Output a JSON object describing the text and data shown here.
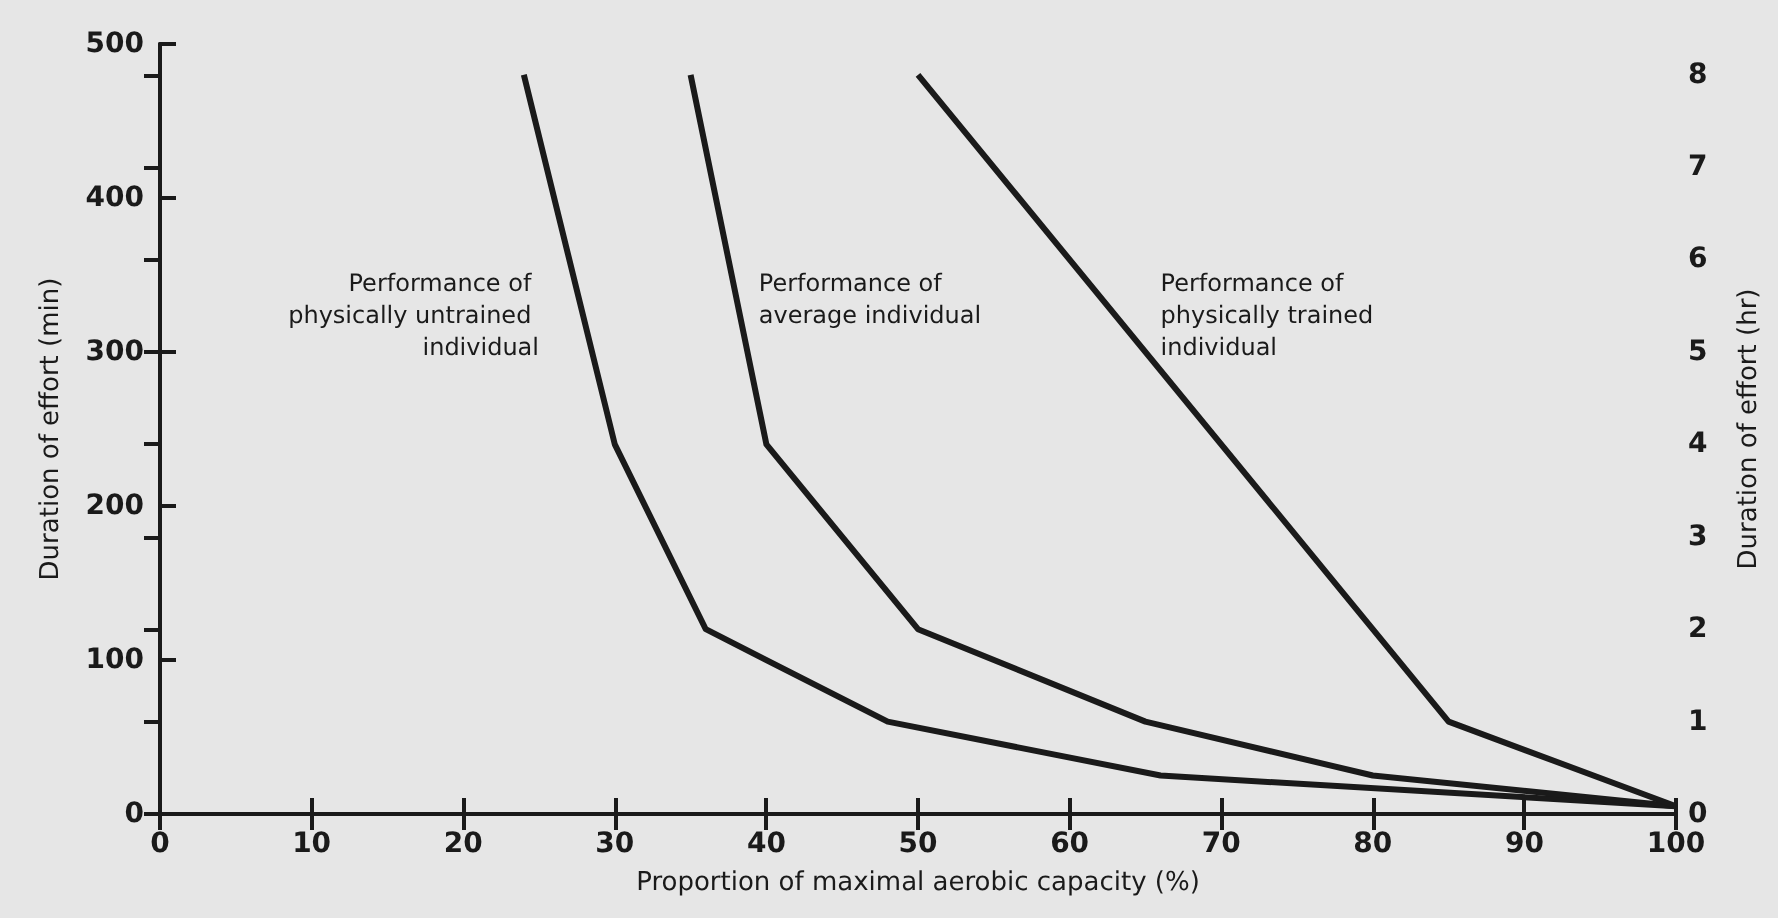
{
  "chart_data": {
    "type": "line",
    "xlabel": "Proportion of maximal aerobic capacity (%)",
    "ylabel": "Duration of effort (min)",
    "y2label": "Duration of effort (hr)",
    "xlim": [
      0,
      100
    ],
    "xticks": [
      0,
      10,
      20,
      30,
      40,
      50,
      60,
      70,
      80,
      90,
      100
    ],
    "ylim": [
      0,
      500
    ],
    "yticks": [
      0,
      100,
      200,
      300,
      400,
      500
    ],
    "y2lim": [
      0,
      8.33
    ],
    "y2ticks": [
      0,
      1,
      2,
      3,
      4,
      5,
      6,
      7,
      8
    ],
    "grid": false,
    "legend": false,
    "marker": "none",
    "line_style": "solid",
    "series": [
      {
        "name": "Performance of physically untrained individual",
        "color": "#1a1a1a",
        "x": [
          24,
          30,
          36,
          48,
          66,
          100
        ],
        "values": [
          480,
          240,
          120,
          60,
          25,
          5
        ]
      },
      {
        "name": "Performance of average individual",
        "color": "#1a1a1a",
        "x": [
          35,
          40,
          50,
          65,
          80,
          100
        ],
        "values": [
          480,
          240,
          120,
          60,
          25,
          5
        ]
      },
      {
        "name": "Performance of physically trained individual",
        "color": "#1a1a1a",
        "x": [
          50,
          85,
          100
        ],
        "values": [
          480,
          60,
          5
        ]
      }
    ]
  }
}
